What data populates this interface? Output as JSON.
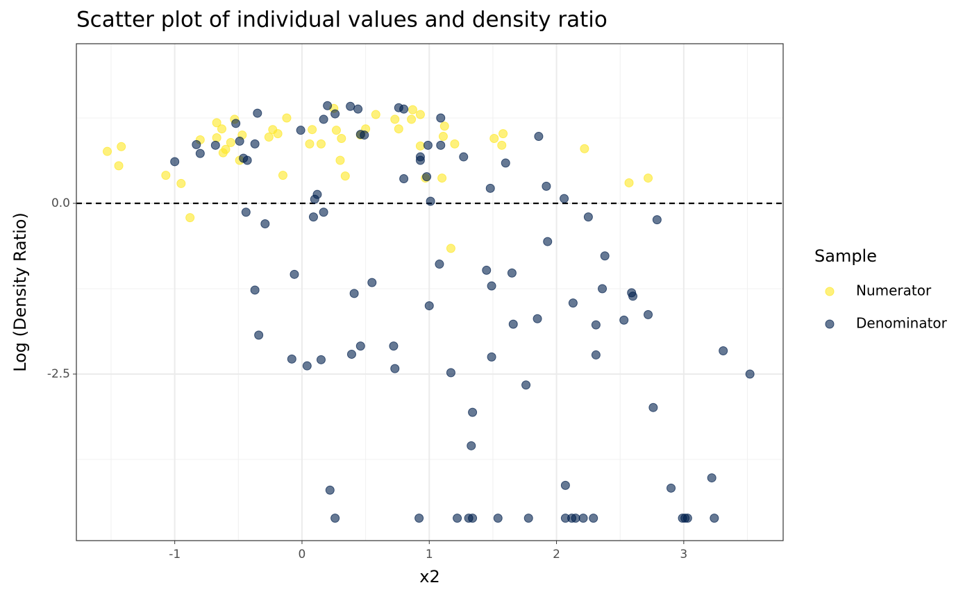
{
  "chart_data": {
    "type": "scatter",
    "title": "Scatter plot of individual values and density ratio",
    "xlabel": "x2",
    "ylabel": "Log (Density Ratio)",
    "legend_title": "Sample",
    "xlim": [
      -1.773,
      3.781
    ],
    "ylim": [
      -4.939,
      2.337
    ],
    "xticks": [
      -1,
      0,
      1,
      2,
      3
    ],
    "yticks": [
      {
        "value": 0,
        "label": "0.0"
      },
      {
        "value": -2.5,
        "label": "-2.5"
      }
    ],
    "grid": true,
    "hline": 0,
    "legend": "right",
    "series": [
      {
        "name": "Numerator",
        "color": "#FDE725",
        "x": [
          -1.53,
          -1.42,
          -1.44,
          -1.07,
          -0.95,
          -0.88,
          -0.8,
          -0.67,
          -0.67,
          -0.63,
          -0.62,
          -0.6,
          -0.56,
          -0.53,
          -0.47,
          -0.49,
          -0.26,
          -0.23,
          -0.19,
          -0.15,
          -0.12,
          0.06,
          0.08,
          0.15,
          0.25,
          0.27,
          0.3,
          0.31,
          0.34,
          0.46,
          0.5,
          0.58,
          0.73,
          0.76,
          0.86,
          0.87,
          0.93,
          0.93,
          0.97,
          1.1,
          1.11,
          1.12,
          1.17,
          1.2,
          1.51,
          1.57,
          1.58,
          2.22,
          2.57,
          2.72
        ],
        "values": [
          0.76,
          0.83,
          0.55,
          0.41,
          0.29,
          -0.21,
          0.93,
          1.18,
          0.96,
          1.09,
          0.74,
          0.79,
          0.89,
          1.23,
          1.0,
          0.63,
          0.97,
          1.08,
          1.02,
          0.41,
          1.25,
          0.87,
          1.08,
          0.87,
          1.39,
          1.07,
          0.63,
          0.95,
          0.4,
          1.0,
          1.09,
          1.3,
          1.23,
          1.09,
          1.23,
          1.37,
          1.3,
          0.84,
          0.37,
          0.37,
          0.98,
          1.13,
          -0.66,
          0.87,
          0.95,
          0.85,
          1.02,
          0.8,
          0.3,
          0.37
        ]
      },
      {
        "name": "Denominator",
        "color": "#00204D",
        "x": [
          -1.0,
          -0.83,
          -0.8,
          -0.68,
          -0.52,
          -0.49,
          -0.46,
          -0.43,
          -0.44,
          -0.37,
          -0.35,
          -0.37,
          -0.34,
          -0.29,
          -0.08,
          -0.06,
          -0.01,
          0.04,
          0.09,
          0.1,
          0.12,
          0.15,
          0.17,
          0.17,
          0.2,
          0.22,
          0.26,
          0.26,
          0.38,
          0.39,
          0.44,
          0.41,
          0.46,
          0.49,
          0.46,
          0.55,
          0.72,
          0.73,
          0.76,
          0.8,
          0.8,
          0.92,
          0.93,
          0.93,
          0.98,
          0.99,
          1.0,
          1.01,
          1.08,
          1.09,
          1.09,
          1.17,
          1.22,
          1.27,
          1.31,
          1.34,
          1.33,
          1.34,
          1.45,
          1.48,
          1.49,
          1.49,
          1.54,
          1.6,
          1.65,
          1.66,
          1.76,
          1.78,
          1.85,
          1.86,
          1.92,
          1.93,
          2.06,
          2.07,
          2.07,
          2.12,
          2.13,
          2.15,
          2.21,
          2.25,
          2.29,
          2.31,
          2.31,
          2.36,
          2.38,
          2.53,
          2.59,
          2.6,
          2.72,
          2.76,
          2.79,
          2.9,
          2.99,
          3.01,
          3.03,
          3.22,
          3.24,
          3.31,
          3.52
        ],
        "values": [
          0.61,
          0.86,
          0.73,
          0.85,
          1.17,
          0.91,
          0.66,
          0.63,
          -0.13,
          0.87,
          1.32,
          -1.27,
          -1.93,
          -0.3,
          -2.28,
          -1.04,
          1.07,
          -2.38,
          -0.2,
          0.06,
          0.13,
          -2.29,
          1.23,
          -0.13,
          1.43,
          -4.2,
          1.31,
          -4.61,
          1.42,
          -2.21,
          1.38,
          -1.32,
          1.01,
          1.0,
          -2.09,
          -1.16,
          -2.09,
          -2.42,
          1.4,
          1.38,
          0.36,
          -4.61,
          0.68,
          0.63,
          0.39,
          0.85,
          -1.5,
          0.03,
          -0.89,
          1.25,
          0.85,
          -2.48,
          -4.61,
          0.68,
          -4.61,
          -4.61,
          -3.55,
          -3.06,
          -0.98,
          0.22,
          -1.21,
          -2.25,
          -4.61,
          0.59,
          -1.02,
          -1.77,
          -2.66,
          -4.61,
          -1.69,
          0.98,
          0.25,
          -0.56,
          0.07,
          -4.13,
          -4.61,
          -4.61,
          -1.46,
          -4.61,
          -4.61,
          -0.2,
          -4.61,
          -1.78,
          -2.22,
          -1.25,
          -0.77,
          -1.71,
          -1.31,
          -1.36,
          -1.63,
          -2.99,
          -0.24,
          -4.17,
          -4.61,
          -4.61,
          -4.61,
          -4.02,
          -4.61,
          -2.16,
          -2.5
        ]
      }
    ]
  }
}
